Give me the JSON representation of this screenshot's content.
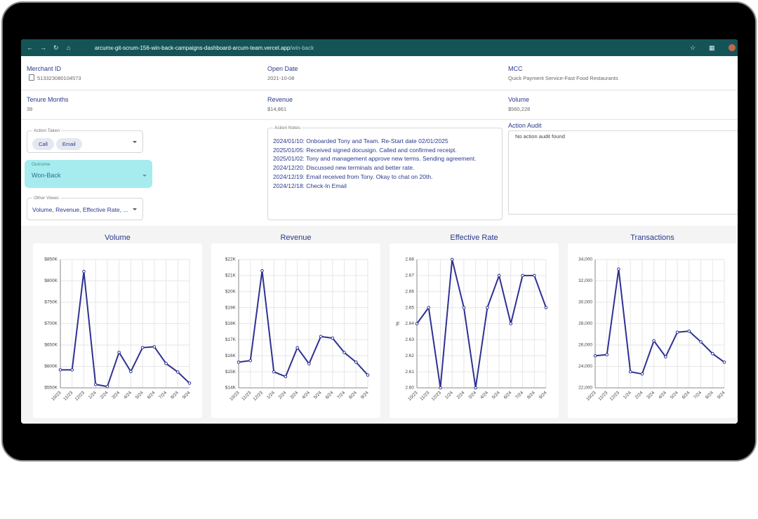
{
  "browser": {
    "url_host": "arcumx-git-scrum-156-win-back-campaigns-dashboard-arcum-team.vercel.app",
    "url_path": "/win-back"
  },
  "merchant": {
    "fields": [
      {
        "label": "Merchant ID",
        "value": "513323080104573"
      },
      {
        "label": "Open Date",
        "value": "2021-10-08"
      },
      {
        "label": "MCC",
        "value": "Quick Payment Service-Fast Food Restaurants"
      },
      {
        "label": "Tenure Months",
        "value": "39"
      },
      {
        "label": "Revenue",
        "value": "$14,861"
      },
      {
        "label": "Volume",
        "value": "$560,228"
      }
    ]
  },
  "form": {
    "action_taken": {
      "label": "Action Taken",
      "chips": [
        "Call",
        "Email"
      ]
    },
    "outcome": {
      "label": "Outcome",
      "value": "Won-Back"
    },
    "other_views": {
      "label": "Other Views:",
      "value": "Volume, Revenue, Effective Rate, ..."
    }
  },
  "action_notes": {
    "label": "Action Notes",
    "notes": [
      "2024/01/10: Onboarded Tony and Team. Re-Start date 02/01/2025",
      "2025/01/05: Received signed docusign. Called and confirmed receipt.",
      "2025/01/02: Tony and management approve new terms. Sending agreement.",
      "2024/12/20: Discussed new terminals and better rate.",
      "2024/12/19: Email received from Tony. Okay to chat on 20th.",
      "2024/12/18: Check-In Email"
    ]
  },
  "action_audit": {
    "label": "Action Audit",
    "message": "No action audit found"
  },
  "chart_data": [
    {
      "type": "line",
      "title": "Volume",
      "color": "#2e3192",
      "grid": true,
      "categories": [
        "10/23",
        "11/23",
        "12/23",
        "1/24",
        "2/24",
        "3/24",
        "4/24",
        "5/24",
        "6/24",
        "7/24",
        "8/24",
        "9/24"
      ],
      "values": [
        592000,
        592000,
        822000,
        558000,
        553000,
        633000,
        588000,
        644000,
        646000,
        607000,
        587000,
        561000
      ],
      "ylim": [
        550000,
        850000
      ],
      "yticks": [
        {
          "value": 550000,
          "label": "$550K"
        },
        {
          "value": 600000,
          "label": "$600K"
        },
        {
          "value": 650000,
          "label": "$650K"
        },
        {
          "value": 700000,
          "label": "$700K"
        },
        {
          "value": 750000,
          "label": "$750K"
        },
        {
          "value": 800000,
          "label": "$800K"
        },
        {
          "value": 850000,
          "label": "$850K"
        }
      ]
    },
    {
      "type": "line",
      "title": "Revenue",
      "color": "#2e3192",
      "grid": true,
      "categories": [
        "10/23",
        "11/23",
        "12/23",
        "1/24",
        "2/24",
        "3/24",
        "4/24",
        "5/24",
        "6/24",
        "7/24",
        "8/24",
        "9/24"
      ],
      "values": [
        15600,
        15700,
        21300,
        15000,
        14700,
        16500,
        15500,
        17200,
        17100,
        16200,
        15600,
        14800
      ],
      "ylim": [
        14000,
        22000
      ],
      "yticks": [
        {
          "value": 14000,
          "label": "$14K"
        },
        {
          "value": 15000,
          "label": "$15K"
        },
        {
          "value": 16000,
          "label": "$16K"
        },
        {
          "value": 17000,
          "label": "$17K"
        },
        {
          "value": 18000,
          "label": "$18K"
        },
        {
          "value": 19000,
          "label": "$19K"
        },
        {
          "value": 20000,
          "label": "$20K"
        },
        {
          "value": 21000,
          "label": "$21K"
        },
        {
          "value": 22000,
          "label": "$22K"
        }
      ]
    },
    {
      "type": "line",
      "title": "Effective Rate",
      "ylabel": "%",
      "color": "#2e3192",
      "grid": true,
      "categories": [
        "10/23",
        "11/23",
        "12/23",
        "1/24",
        "2/24",
        "3/24",
        "4/24",
        "5/24",
        "6/24",
        "7/24",
        "8/24",
        "9/24"
      ],
      "values": [
        2.64,
        2.65,
        2.6,
        2.68,
        2.65,
        2.6,
        2.65,
        2.67,
        2.64,
        2.67,
        2.67,
        2.65
      ],
      "ylim": [
        2.6,
        2.68
      ],
      "yticks": [
        {
          "value": 2.6,
          "label": "2.60"
        },
        2.61,
        2.62,
        2.63,
        2.64,
        2.65,
        2.66,
        2.67,
        2.68
      ]
    },
    {
      "type": "line",
      "title": "Transactions",
      "color": "#2e3192",
      "grid": true,
      "categories": [
        "10/23",
        "11/23",
        "12/23",
        "1/24",
        "2/24",
        "3/24",
        "4/24",
        "5/24",
        "6/24",
        "7/24",
        "8/24",
        "9/24"
      ],
      "values": [
        25000,
        25100,
        33100,
        23500,
        23300,
        26400,
        24900,
        27200,
        27300,
        26300,
        25200,
        24400
      ],
      "ylim": [
        22000,
        34000
      ],
      "yticks": [
        {
          "value": 22000,
          "label": "22,000"
        },
        {
          "value": 24000,
          "label": "24,000"
        },
        {
          "value": 26000,
          "label": "26,000"
        },
        {
          "value": 28000,
          "label": "28,000"
        },
        {
          "value": 30000,
          "label": "30,000"
        },
        {
          "value": 32000,
          "label": "32,000"
        },
        {
          "value": 34000,
          "label": "34,000"
        }
      ]
    }
  ]
}
